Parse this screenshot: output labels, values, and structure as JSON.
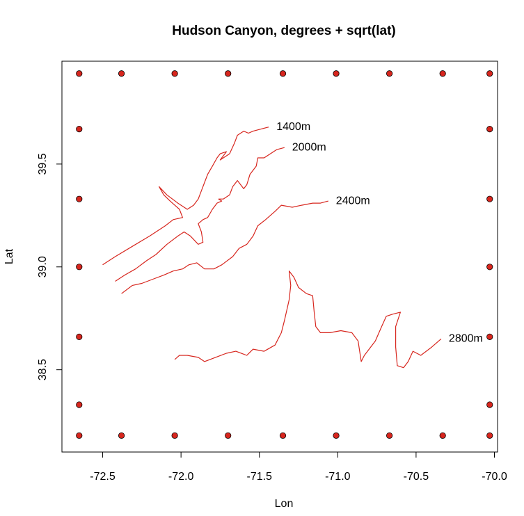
{
  "chart_data": {
    "type": "scatter",
    "title": "Hudson Canyon, degrees + sqrt(lat)",
    "xlabel": "Lon",
    "ylabel": "Lat",
    "xlim": [
      -72.76,
      -69.98
    ],
    "ylim": [
      38.1,
      40.0
    ],
    "xticks": [
      -72.5,
      {
        "value": -72,
        "label": "-72.0"
      },
      -71.5,
      {
        "value": -71,
        "label": "-71.0"
      },
      -70.5,
      {
        "value": -70,
        "label": "-70.0"
      }
    ],
    "yticks": [
      38.5,
      {
        "value": 39,
        "label": "39.0"
      },
      39.5
    ],
    "points": {
      "color": "#d7261e",
      "x": [
        -72.65,
        -72.38,
        -72.04,
        -71.7,
        -71.35,
        -71.01,
        -70.67,
        -70.33,
        -70.03,
        -72.65,
        -70.03,
        -72.65,
        -70.03,
        -72.65,
        -70.03,
        -72.65,
        -70.03,
        -72.65,
        -70.03,
        -72.65,
        -72.38,
        -72.04,
        -71.7,
        -71.35,
        -71.01,
        -70.67,
        -70.33,
        -70.03
      ],
      "y": [
        39.94,
        39.94,
        39.94,
        39.94,
        39.94,
        39.94,
        39.94,
        39.94,
        39.94,
        39.67,
        39.67,
        39.33,
        39.33,
        39.0,
        39.0,
        38.66,
        38.66,
        38.33,
        38.33,
        38.18,
        38.18,
        38.18,
        38.18,
        38.18,
        38.18,
        38.18,
        38.18,
        38.18
      ]
    },
    "lines": [
      {
        "name": "1400m",
        "color": "#d7261e",
        "x": [
          -72.5,
          -72.42,
          -72.31,
          -72.2,
          -72.1,
          -72.05,
          -71.99,
          -72.01,
          -72.07,
          -72.11,
          -72.14,
          -72.09,
          -72.02,
          -71.96,
          -71.92,
          -71.89,
          -71.87,
          -71.85,
          -71.83,
          -71.8,
          -71.77,
          -71.75,
          -71.71,
          -71.75,
          -71.69,
          -71.66,
          -71.64,
          -71.6,
          -71.57,
          -71.54,
          -71.49,
          -71.44
        ],
        "y": [
          39.01,
          39.05,
          39.1,
          39.15,
          39.2,
          39.23,
          39.24,
          39.28,
          39.32,
          39.35,
          39.39,
          39.35,
          39.31,
          39.28,
          39.3,
          39.33,
          39.37,
          39.41,
          39.45,
          39.49,
          39.53,
          39.55,
          39.56,
          39.52,
          39.55,
          39.6,
          39.64,
          39.66,
          39.65,
          39.66,
          39.67,
          39.68
        ]
      },
      {
        "name": "2000m",
        "color": "#d7261e",
        "x": [
          -72.42,
          -72.36,
          -72.29,
          -72.22,
          -72.16,
          -72.09,
          -72.02,
          -71.98,
          -71.94,
          -71.89,
          -71.86,
          -71.87,
          -71.89,
          -71.86,
          -71.83,
          -71.8,
          -71.77,
          -71.74,
          -71.76,
          -71.73,
          -71.69,
          -71.67,
          -71.64,
          -71.6,
          -71.58,
          -71.56,
          -71.52,
          -71.51,
          -71.47,
          -71.43,
          -71.39,
          -71.34
        ],
        "y": [
          38.93,
          38.96,
          38.99,
          39.03,
          39.06,
          39.11,
          39.15,
          39.17,
          39.15,
          39.11,
          39.12,
          39.17,
          39.21,
          39.23,
          39.24,
          39.28,
          39.31,
          39.32,
          39.33,
          39.33,
          39.35,
          39.39,
          39.42,
          39.38,
          39.4,
          39.45,
          39.49,
          39.53,
          39.53,
          39.55,
          39.57,
          39.58
        ]
      },
      {
        "name": "2400m",
        "color": "#d7261e",
        "x": [
          -72.38,
          -72.31,
          -72.25,
          -72.18,
          -72.11,
          -72.05,
          -71.99,
          -71.95,
          -71.9,
          -71.85,
          -71.79,
          -71.74,
          -71.67,
          -71.63,
          -71.58,
          -71.54,
          -71.51,
          -71.46,
          -71.4,
          -71.36,
          -71.29,
          -71.23,
          -71.16,
          -71.11,
          -71.06
        ],
        "y": [
          38.87,
          38.91,
          38.92,
          38.94,
          38.96,
          38.98,
          38.99,
          39.01,
          39.02,
          38.99,
          38.99,
          39.01,
          39.05,
          39.09,
          39.11,
          39.15,
          39.2,
          39.23,
          39.27,
          39.3,
          39.29,
          39.3,
          39.31,
          39.31,
          39.32
        ]
      },
      {
        "name": "2800m",
        "color": "#d7261e",
        "x": [
          -72.04,
          -72.01,
          -71.96,
          -71.89,
          -71.85,
          -71.78,
          -71.71,
          -71.65,
          -71.58,
          -71.54,
          -71.47,
          -71.4,
          -71.36,
          -71.34,
          -71.31,
          -71.3,
          -71.31,
          -71.28,
          -71.25,
          -71.2,
          -71.16,
          -71.15,
          -71.14,
          -71.11,
          -71.05,
          -70.98,
          -70.91,
          -70.87,
          -70.85,
          -70.83,
          -70.8,
          -70.76,
          -70.72,
          -70.69,
          -70.65,
          -70.6,
          -70.63,
          -70.63,
          -70.62,
          -70.58,
          -70.55,
          -70.52,
          -70.47,
          -70.4,
          -70.34
        ],
        "y": [
          38.55,
          38.57,
          38.57,
          38.56,
          38.54,
          38.56,
          38.58,
          38.59,
          38.57,
          38.6,
          38.59,
          38.62,
          38.68,
          38.74,
          38.84,
          38.91,
          38.98,
          38.95,
          38.9,
          38.87,
          38.86,
          38.78,
          38.71,
          38.68,
          38.68,
          38.69,
          38.68,
          38.64,
          38.54,
          38.57,
          38.6,
          38.64,
          38.71,
          38.76,
          38.77,
          38.78,
          38.71,
          38.61,
          38.52,
          38.51,
          38.54,
          38.59,
          38.57,
          38.61,
          38.65
        ]
      }
    ]
  }
}
